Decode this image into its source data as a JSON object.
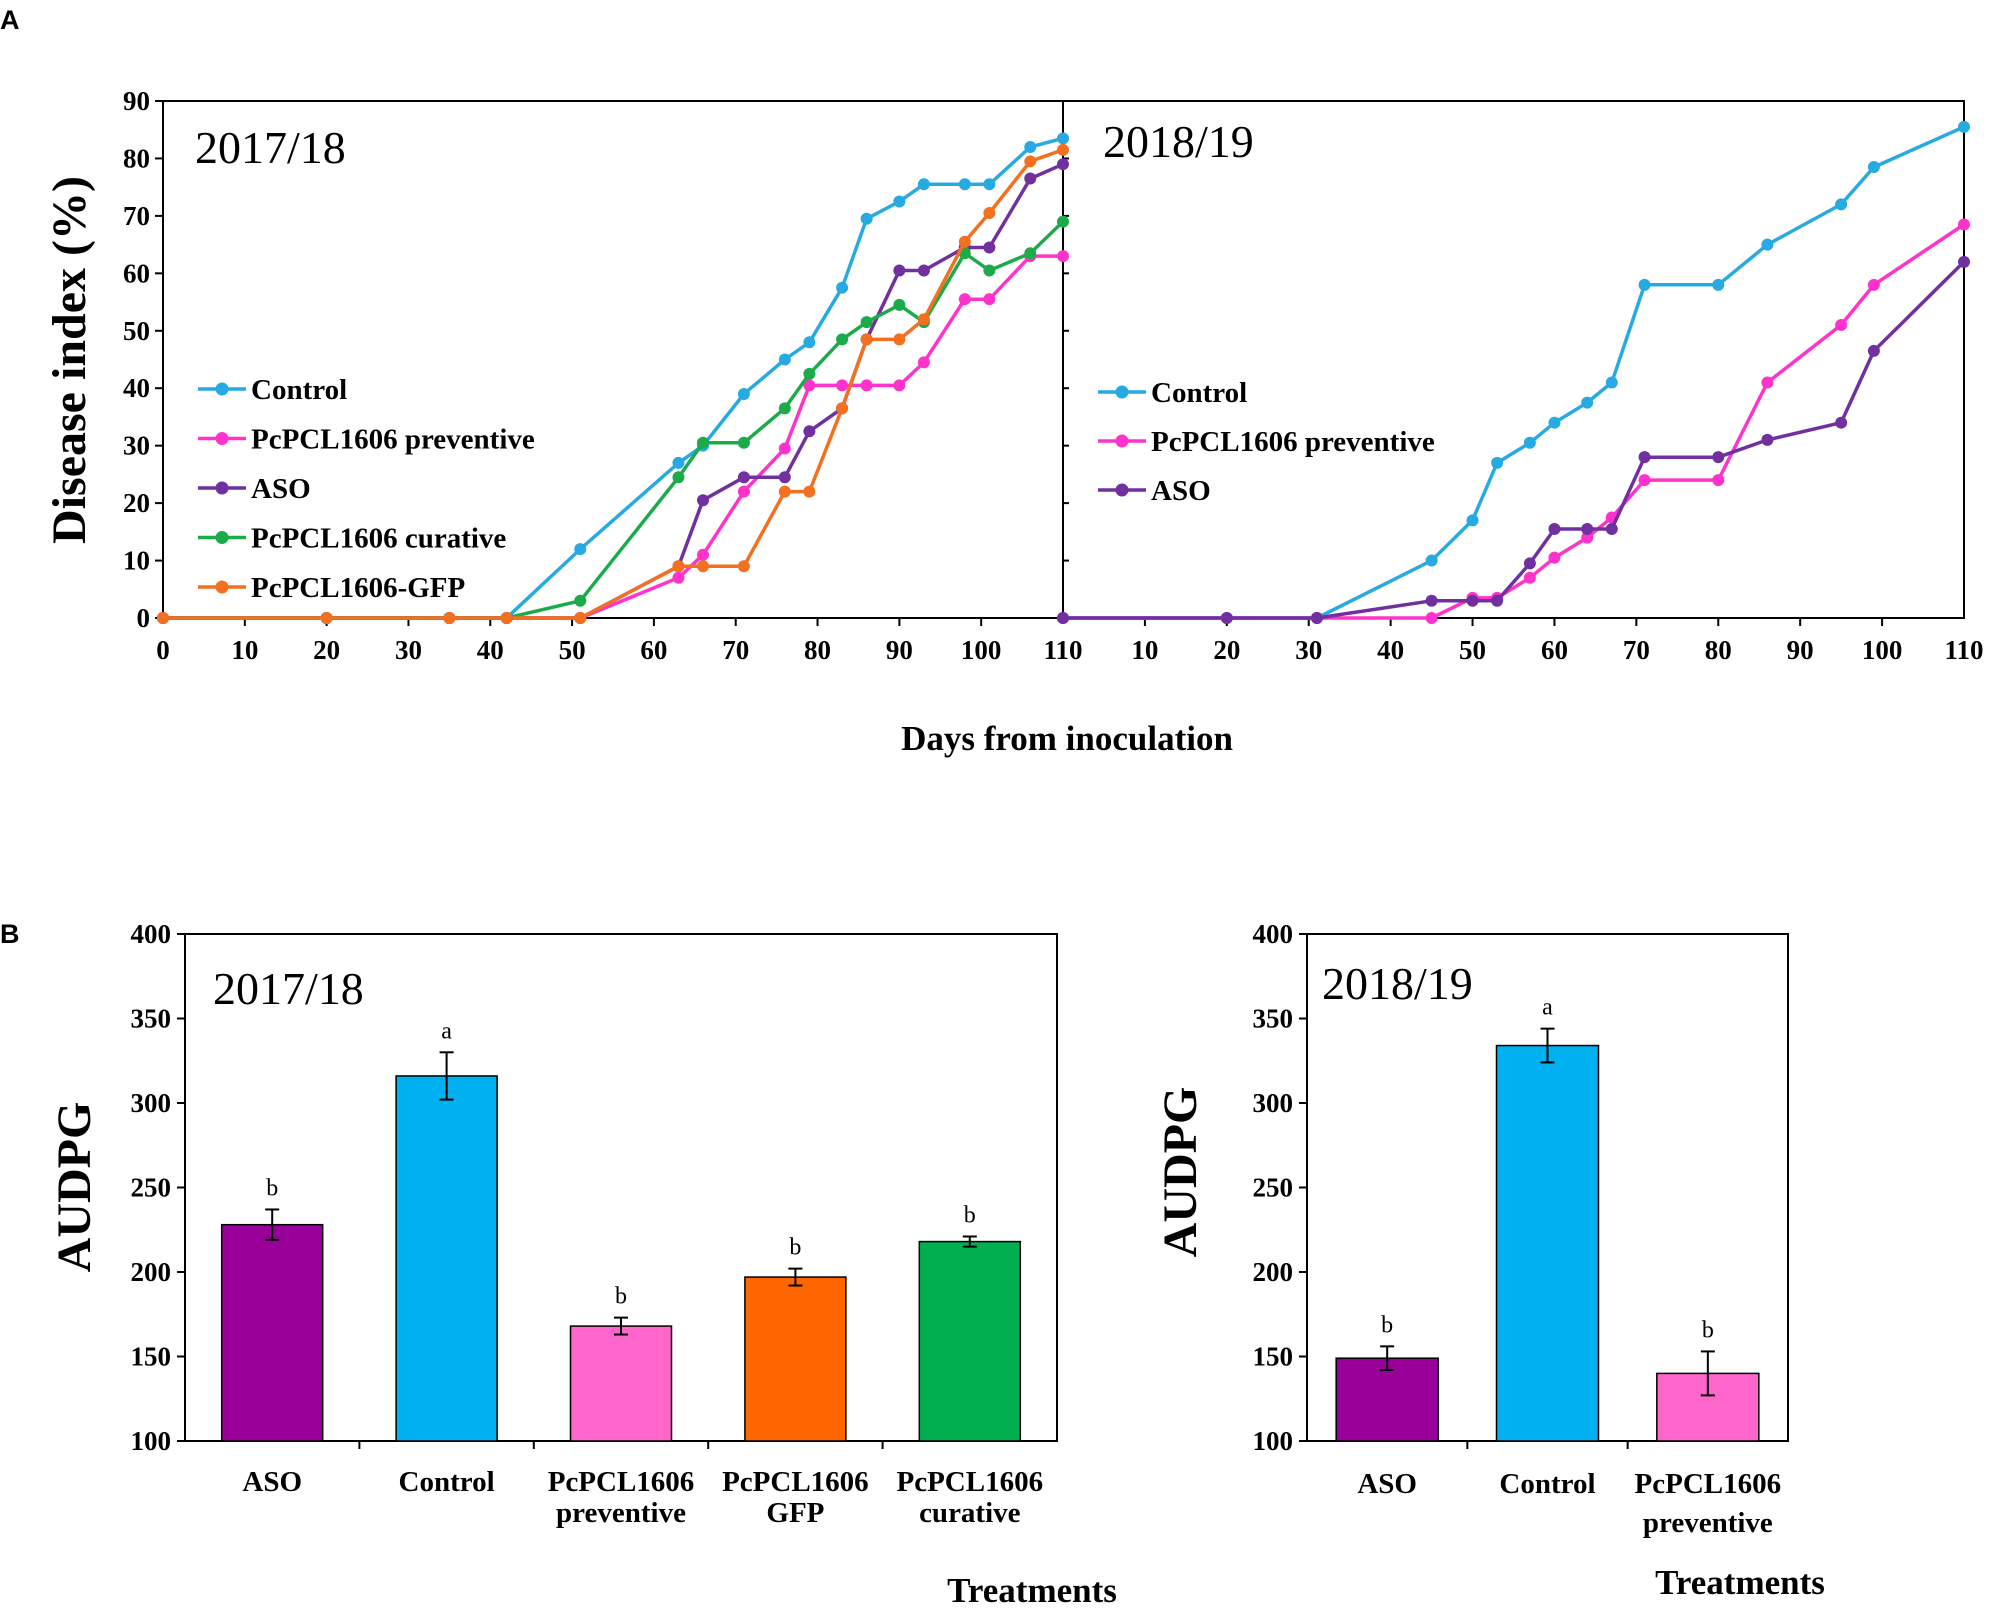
{
  "panel_labels": {
    "a": "A",
    "b": "B"
  },
  "chart_data": [
    {
      "type": "line",
      "panel": "A",
      "title": "2017/18",
      "xlabel": "Days from inoculation",
      "ylabel": "Disease index (%)",
      "xlim": [
        0,
        110
      ],
      "ylim": [
        0,
        90
      ],
      "xticks": [
        "0",
        "10",
        "20",
        "30",
        "40",
        "50",
        "60",
        "70",
        "80",
        "90",
        "100",
        "110"
      ],
      "yticks": [
        "0",
        "10",
        "20",
        "30",
        "40",
        "50",
        "60",
        "70",
        "80",
        "90"
      ],
      "legend_position": "center-left",
      "series": [
        {
          "name": "Control",
          "color": "#27aae1",
          "x": [
            0,
            20,
            35,
            42,
            51,
            63,
            66,
            71,
            76,
            79,
            83,
            86,
            90,
            93,
            98,
            101,
            106,
            110
          ],
          "y": [
            0,
            0,
            0,
            0,
            12,
            27,
            30,
            39,
            45,
            48,
            57.5,
            69.5,
            72.5,
            75.5,
            75.5,
            75.5,
            82,
            83.5
          ]
        },
        {
          "name": "PcPCL1606 preventive",
          "color": "#ff33cc",
          "x": [
            0,
            20,
            35,
            42,
            51,
            63,
            66,
            71,
            76,
            79,
            83,
            86,
            90,
            93,
            98,
            101,
            106,
            110
          ],
          "y": [
            0,
            0,
            0,
            0,
            0,
            7,
            11,
            22,
            29.5,
            40.5,
            40.5,
            40.5,
            40.5,
            44.5,
            55.5,
            55.5,
            63,
            63
          ]
        },
        {
          "name": "ASO",
          "color": "#7030a0",
          "x": [
            0,
            20,
            35,
            42,
            51,
            63,
            66,
            71,
            76,
            79,
            83,
            86,
            90,
            93,
            98,
            101,
            106,
            110
          ],
          "y": [
            0,
            0,
            0,
            0,
            0,
            9,
            20.5,
            24.5,
            24.5,
            32.5,
            36.5,
            48.5,
            60.5,
            60.5,
            64.5,
            64.5,
            76.5,
            79
          ]
        },
        {
          "name": "PcPCL1606 curative",
          "color": "#1cab4b",
          "x": [
            0,
            20,
            35,
            42,
            51,
            63,
            66,
            71,
            76,
            79,
            83,
            86,
            90,
            93,
            98,
            101,
            106,
            110
          ],
          "y": [
            0,
            0,
            0,
            0,
            3,
            24.5,
            30.5,
            30.5,
            36.5,
            42.5,
            48.5,
            51.5,
            54.5,
            51.5,
            63.5,
            60.5,
            63.5,
            69
          ]
        },
        {
          "name": "PcPCL1606-GFP",
          "color": "#f37021",
          "x": [
            0,
            20,
            35,
            42,
            51,
            63,
            66,
            71,
            76,
            79,
            83,
            86,
            90,
            93,
            98,
            101,
            106,
            110
          ],
          "y": [
            0,
            0,
            0,
            0,
            0,
            9,
            9,
            9,
            22,
            22,
            36.5,
            48.5,
            48.5,
            52,
            65.5,
            70.5,
            79.5,
            81.5
          ]
        }
      ]
    },
    {
      "type": "line",
      "panel": "A",
      "title": "2018/19",
      "xlabel": "Days from inoculation",
      "ylabel": "Disease index (%)",
      "xlim": [
        0,
        110
      ],
      "ylim": [
        0,
        90
      ],
      "xticks": [
        "10",
        "20",
        "30",
        "40",
        "50",
        "60",
        "70",
        "80",
        "90",
        "100",
        "110"
      ],
      "legend_position": "center-left",
      "series": [
        {
          "name": "Control",
          "color": "#27aae1",
          "x": [
            0,
            20,
            31,
            45,
            50,
            53,
            57,
            60,
            64,
            67,
            71,
            80,
            86,
            95,
            99,
            110
          ],
          "y": [
            0,
            0,
            0,
            10,
            17,
            27,
            30.5,
            34,
            37.5,
            41,
            58,
            58,
            65,
            72,
            78.5,
            85.5
          ]
        },
        {
          "name": "PcPCL1606 preventive",
          "color": "#ff33cc",
          "x": [
            0,
            20,
            31,
            45,
            50,
            53,
            57,
            60,
            64,
            67,
            71,
            80,
            86,
            95,
            99,
            110
          ],
          "y": [
            0,
            0,
            0,
            0,
            3.5,
            3.5,
            7,
            10.5,
            14,
            17.5,
            24,
            24,
            41,
            51,
            58,
            68.5
          ]
        },
        {
          "name": "ASO",
          "color": "#7030a0",
          "x": [
            0,
            20,
            31,
            45,
            50,
            53,
            57,
            60,
            64,
            67,
            71,
            80,
            86,
            95,
            99,
            110
          ],
          "y": [
            0,
            0,
            0,
            3,
            3,
            3,
            9.5,
            15.5,
            15.5,
            15.5,
            28,
            28,
            31,
            34,
            46.5,
            62
          ]
        }
      ]
    },
    {
      "type": "bar",
      "panel": "B",
      "title": "2017/18",
      "xlabel": "Treatments",
      "ylabel": "AUDPG",
      "ylim": [
        100,
        400
      ],
      "yticks": [
        "100",
        "150",
        "200",
        "250",
        "300",
        "350",
        "400"
      ],
      "categories": [
        "ASO",
        "Control",
        "PcPCL1606 preventive",
        "PcPCL1606 GFP",
        "PcPCL1606 curative"
      ],
      "category_lines": [
        [
          "ASO"
        ],
        [
          "Control"
        ],
        [
          "PcPCL1606",
          "preventive"
        ],
        [
          "PcPCL1606",
          "GFP"
        ],
        [
          "PcPCL1606",
          "curative"
        ]
      ],
      "values": [
        228,
        316,
        168,
        197,
        218
      ],
      "errors": [
        9,
        14,
        5,
        5,
        3
      ],
      "significance": [
        "b",
        "a",
        "b",
        "b",
        "b"
      ],
      "colors": [
        "#990099",
        "#00b0f0",
        "#ff66cc",
        "#ff6600",
        "#00b050"
      ]
    },
    {
      "type": "bar",
      "panel": "B",
      "title": "2018/19",
      "xlabel": "Treatments",
      "ylabel": "AUDPG",
      "ylim": [
        100,
        400
      ],
      "yticks": [
        "100",
        "150",
        "200",
        "250",
        "300",
        "350",
        "400"
      ],
      "categories": [
        "ASO",
        "Control",
        "PcPCL1606 preventive"
      ],
      "category_lines": [
        [
          "ASO"
        ],
        [
          "Control"
        ],
        [
          "PcPCL1606",
          "preventive"
        ]
      ],
      "values": [
        149,
        334,
        140
      ],
      "errors": [
        7,
        10,
        13
      ],
      "significance": [
        "b",
        "a",
        "b"
      ],
      "colors": [
        "#990099",
        "#00b0f0",
        "#ff66cc"
      ]
    }
  ]
}
